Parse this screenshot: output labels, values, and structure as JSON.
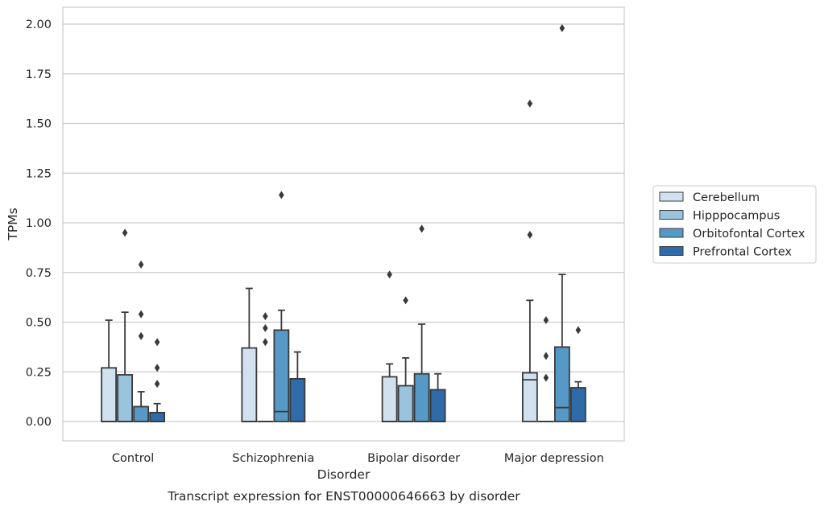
{
  "chart_data": {
    "type": "box",
    "caption": "Transcript expression for ENST00000646663 by disorder",
    "xlabel": "Disorder",
    "ylabel": "TPMs",
    "ylim": [
      -0.1,
      2.08
    ],
    "yticks": [
      0.0,
      0.25,
      0.5,
      0.75,
      1.0,
      1.25,
      1.5,
      1.75,
      2.0
    ],
    "ytick_labels": [
      "0.00",
      "0.25",
      "0.50",
      "0.75",
      "1.00",
      "1.25",
      "1.50",
      "1.75",
      "2.00"
    ],
    "grid": "horizontal",
    "legend_position": "right",
    "categories": [
      "Control",
      "Schizophrenia",
      "Bipolar disorder",
      "Major depression"
    ],
    "series": [
      {
        "name": "Cerebellum",
        "color": "#d1e1f0",
        "boxes": [
          {
            "whislo": 0.0,
            "q1": 0.0,
            "med": 0.0,
            "q3": 0.27,
            "whishi": 0.51,
            "fliers": []
          },
          {
            "whislo": 0.0,
            "q1": 0.0,
            "med": 0.0,
            "q3": 0.37,
            "whishi": 0.67,
            "fliers": []
          },
          {
            "whislo": 0.0,
            "q1": 0.0,
            "med": 0.0,
            "q3": 0.225,
            "whishi": 0.29,
            "fliers": [
              0.74
            ]
          },
          {
            "whislo": 0.0,
            "q1": 0.0,
            "med": 0.21,
            "q3": 0.245,
            "whishi": 0.61,
            "fliers": [
              0.94,
              1.6
            ]
          }
        ]
      },
      {
        "name": "Hipppocampus",
        "color": "#9ac3de",
        "boxes": [
          {
            "whislo": 0.0,
            "q1": 0.0,
            "med": 0.0,
            "q3": 0.235,
            "whishi": 0.55,
            "fliers": [
              0.95
            ]
          },
          {
            "whislo": 0.0,
            "q1": 0.0,
            "med": 0.0,
            "q3": 0.0,
            "whishi": 0.0,
            "fliers": [
              0.4,
              0.47,
              0.53
            ]
          },
          {
            "whislo": 0.0,
            "q1": 0.0,
            "med": 0.0,
            "q3": 0.18,
            "whishi": 0.32,
            "fliers": [
              0.61
            ]
          },
          {
            "whislo": 0.0,
            "q1": 0.0,
            "med": 0.0,
            "q3": 0.0,
            "whishi": 0.0,
            "fliers": [
              0.22,
              0.33,
              0.51
            ]
          }
        ]
      },
      {
        "name": "Orbitofontal Cortex",
        "color": "#5699c6",
        "boxes": [
          {
            "whislo": 0.0,
            "q1": 0.0,
            "med": 0.0,
            "q3": 0.075,
            "whishi": 0.15,
            "fliers": [
              0.43,
              0.54,
              0.79
            ]
          },
          {
            "whislo": 0.0,
            "q1": 0.0,
            "med": 0.05,
            "q3": 0.46,
            "whishi": 0.56,
            "fliers": [
              1.14
            ]
          },
          {
            "whislo": 0.0,
            "q1": 0.0,
            "med": 0.0,
            "q3": 0.24,
            "whishi": 0.49,
            "fliers": [
              0.97
            ]
          },
          {
            "whislo": 0.0,
            "q1": 0.0,
            "med": 0.07,
            "q3": 0.375,
            "whishi": 0.74,
            "fliers": [
              1.98
            ]
          }
        ]
      },
      {
        "name": "Prefrontal Cortex",
        "color": "#2e6ba8",
        "boxes": [
          {
            "whislo": 0.0,
            "q1": 0.0,
            "med": 0.0,
            "q3": 0.045,
            "whishi": 0.09,
            "fliers": [
              0.19,
              0.27,
              0.4
            ]
          },
          {
            "whislo": 0.0,
            "q1": 0.0,
            "med": 0.0,
            "q3": 0.215,
            "whishi": 0.35,
            "fliers": []
          },
          {
            "whislo": 0.0,
            "q1": 0.0,
            "med": 0.0,
            "q3": 0.16,
            "whishi": 0.24,
            "fliers": []
          },
          {
            "whislo": 0.0,
            "q1": 0.0,
            "med": 0.0,
            "q3": 0.17,
            "whishi": 0.2,
            "fliers": [
              0.46
            ]
          }
        ]
      }
    ]
  }
}
